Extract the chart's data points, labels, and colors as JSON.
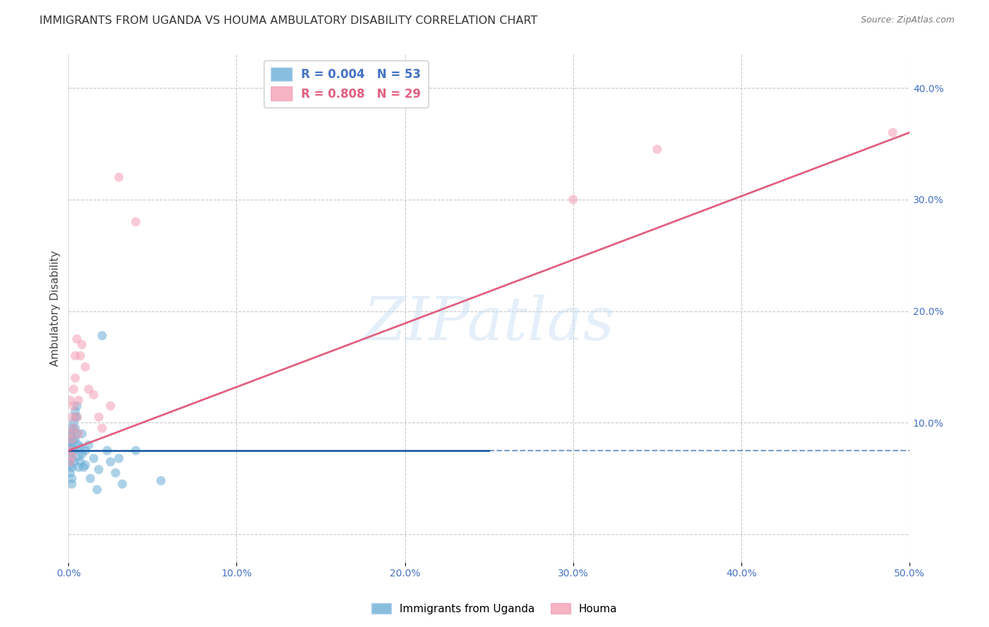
{
  "title": "IMMIGRANTS FROM UGANDA VS HOUMA AMBULATORY DISABILITY CORRELATION CHART",
  "source": "Source: ZipAtlas.com",
  "ylabel": "Ambulatory Disability",
  "xlim": [
    0.0,
    0.5
  ],
  "ylim": [
    -0.025,
    0.43
  ],
  "xticks": [
    0.0,
    0.1,
    0.2,
    0.3,
    0.4,
    0.5
  ],
  "yticks": [
    0.0,
    0.1,
    0.2,
    0.3,
    0.4
  ],
  "xtick_labels": [
    "0.0%",
    "10.0%",
    "20.0%",
    "30.0%",
    "40.0%",
    "50.0%"
  ],
  "ytick_labels": [
    "",
    "10.0%",
    "20.0%",
    "30.0%",
    "40.0%"
  ],
  "blue_scatter_x": [
    0.0005,
    0.0005,
    0.0005,
    0.001,
    0.001,
    0.001,
    0.001,
    0.001,
    0.0015,
    0.0015,
    0.002,
    0.002,
    0.002,
    0.002,
    0.002,
    0.002,
    0.002,
    0.002,
    0.003,
    0.003,
    0.003,
    0.003,
    0.003,
    0.004,
    0.004,
    0.004,
    0.004,
    0.005,
    0.005,
    0.005,
    0.006,
    0.006,
    0.006,
    0.007,
    0.007,
    0.008,
    0.008,
    0.009,
    0.01,
    0.01,
    0.012,
    0.013,
    0.015,
    0.017,
    0.018,
    0.02,
    0.023,
    0.025,
    0.028,
    0.03,
    0.032,
    0.04,
    0.055
  ],
  "blue_scatter_y": [
    0.075,
    0.072,
    0.065,
    0.083,
    0.078,
    0.07,
    0.062,
    0.055,
    0.09,
    0.085,
    0.095,
    0.088,
    0.08,
    0.075,
    0.068,
    0.06,
    0.05,
    0.045,
    0.1,
    0.093,
    0.085,
    0.075,
    0.065,
    0.11,
    0.105,
    0.095,
    0.085,
    0.115,
    0.105,
    0.09,
    0.08,
    0.07,
    0.06,
    0.078,
    0.065,
    0.09,
    0.072,
    0.06,
    0.075,
    0.062,
    0.08,
    0.05,
    0.068,
    0.04,
    0.058,
    0.178,
    0.075,
    0.065,
    0.055,
    0.068,
    0.045,
    0.075,
    0.048
  ],
  "pink_scatter_x": [
    0.0005,
    0.001,
    0.001,
    0.001,
    0.002,
    0.002,
    0.002,
    0.003,
    0.003,
    0.003,
    0.004,
    0.004,
    0.005,
    0.005,
    0.006,
    0.006,
    0.007,
    0.008,
    0.01,
    0.012,
    0.015,
    0.018,
    0.02,
    0.025,
    0.03,
    0.04,
    0.3,
    0.35,
    0.49
  ],
  "pink_scatter_y": [
    0.09,
    0.075,
    0.065,
    0.12,
    0.105,
    0.085,
    0.07,
    0.13,
    0.115,
    0.095,
    0.16,
    0.14,
    0.175,
    0.105,
    0.12,
    0.09,
    0.16,
    0.17,
    0.15,
    0.13,
    0.125,
    0.105,
    0.095,
    0.115,
    0.32,
    0.28,
    0.3,
    0.345,
    0.36
  ],
  "blue_line_solid": {
    "x": [
      0.0,
      0.25
    ],
    "y": [
      0.075,
      0.075
    ]
  },
  "blue_line_dashed": {
    "x": [
      0.25,
      0.5
    ],
    "y": [
      0.075,
      0.075
    ]
  },
  "pink_line": {
    "x": [
      0.0,
      0.5
    ],
    "y": [
      0.075,
      0.36
    ]
  },
  "watermark": "ZIPatlas",
  "background_color": "#ffffff",
  "grid_color": "#c8c8c8",
  "scatter_alpha": 0.55,
  "scatter_size": 90,
  "blue_color": "#6baed6",
  "pink_color": "#f4a0b5",
  "blue_line_color": "#1f5fa6",
  "pink_line_color": "#e06080"
}
